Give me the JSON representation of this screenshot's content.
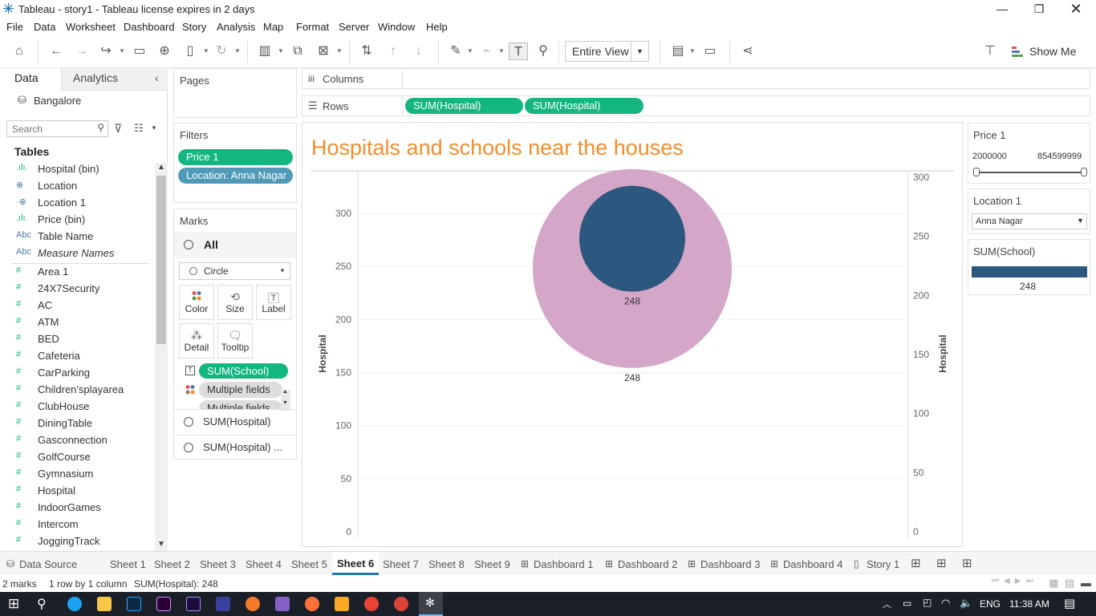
{
  "window": {
    "title": "Tableau - story1 - Tableau license expires in 2 days"
  },
  "menu": [
    "File",
    "Data",
    "Worksheet",
    "Dashboard",
    "Story",
    "Analysis",
    "Map",
    "Format",
    "Server",
    "Window",
    "Help"
  ],
  "toolbar": {
    "view_select": "Entire View",
    "show_me": "Show Me"
  },
  "data_pane": {
    "tab_data": "Data",
    "tab_analytics": "Analytics",
    "datasource": "Bangalore",
    "search_placeholder": "Search",
    "tables_heading": "Tables",
    "fields": [
      {
        "icon": ".ılı.",
        "name": "Hospital (bin)",
        "italic": false
      },
      {
        "icon": "globe",
        "name": "Location",
        "italic": false
      },
      {
        "icon": "globe2",
        "name": "Location 1",
        "italic": false
      },
      {
        "icon": ".ılı.",
        "name": "Price (bin)",
        "italic": false
      },
      {
        "icon": "Abc",
        "name": "Table Name",
        "italic": false
      },
      {
        "icon": "Abc",
        "name": "Measure Names",
        "italic": true
      },
      {
        "icon": "#",
        "name": "Area 1",
        "italic": false
      },
      {
        "icon": "#",
        "name": "24X7Security",
        "italic": false
      },
      {
        "icon": "#",
        "name": "AC",
        "italic": false
      },
      {
        "icon": "#",
        "name": "ATM",
        "italic": false
      },
      {
        "icon": "#",
        "name": "BED",
        "italic": false
      },
      {
        "icon": "#",
        "name": "Cafeteria",
        "italic": false
      },
      {
        "icon": "#",
        "name": "CarParking",
        "italic": false
      },
      {
        "icon": "#",
        "name": "Children'splayarea",
        "italic": false
      },
      {
        "icon": "#",
        "name": "ClubHouse",
        "italic": false
      },
      {
        "icon": "#",
        "name": "DiningTable",
        "italic": false
      },
      {
        "icon": "#",
        "name": "Gasconnection",
        "italic": false
      },
      {
        "icon": "#",
        "name": "GolfCourse",
        "italic": false
      },
      {
        "icon": "#",
        "name": "Gymnasium",
        "italic": false
      },
      {
        "icon": "#",
        "name": "Hospital",
        "italic": false
      },
      {
        "icon": "#",
        "name": "IndoorGames",
        "italic": false
      },
      {
        "icon": "#",
        "name": "Intercom",
        "italic": false
      },
      {
        "icon": "#",
        "name": "JoggingTrack",
        "italic": false
      }
    ]
  },
  "pages": {
    "title": "Pages"
  },
  "filters": {
    "title": "Filters",
    "pills": [
      "Price 1",
      "Location: Anna Nagar"
    ]
  },
  "marks": {
    "title": "Marks",
    "all": "All",
    "type": "Circle",
    "buttons": [
      "Color",
      "Size",
      "Label",
      "Detail",
      "Tooltip"
    ],
    "pills": [
      "SUM(School)",
      "Multiple fields",
      "Multiple fields"
    ],
    "layers": [
      "SUM(Hospital)",
      "SUM(Hospital) ..."
    ]
  },
  "shelves": {
    "columns_label": "Columns",
    "rows_label": "Rows",
    "rows_pills": [
      "SUM(Hospital)",
      "SUM(Hospital)"
    ]
  },
  "viz": {
    "title": "Hospitals and schools near the houses",
    "title_color": "#f28e2b"
  },
  "chart_data": {
    "type": "scatter",
    "title": "Hospitals and schools near the houses",
    "ylabel_left": "Hospital",
    "ylabel_right": "Hospital",
    "left_axis": {
      "ticks": [
        0,
        50,
        100,
        150,
        200,
        250,
        300
      ],
      "range": [
        0,
        340
      ]
    },
    "right_axis": {
      "ticks": [
        0,
        50,
        100,
        150,
        200,
        250,
        300
      ],
      "range": [
        0,
        300
      ]
    },
    "series": [
      {
        "axis": "left",
        "value": 248,
        "label": "248",
        "color": "#d4a6c8",
        "mark": "circle",
        "size": "large"
      },
      {
        "axis": "right",
        "value": 248,
        "label": "248",
        "color": "#2c577f",
        "mark": "circle",
        "size": "medium"
      }
    ]
  },
  "right_panel": {
    "price_title": "Price 1",
    "price_min": "2000000",
    "price_max": "854599999",
    "price_slider_min_fraction": 0,
    "price_slider_max_fraction": 1,
    "location_title": "Location 1",
    "location_value": "Anna Nagar",
    "school_title": "SUM(School)",
    "school_value": "248",
    "school_color": "#2c577f"
  },
  "sheet_tabs": [
    "Data Source",
    "Sheet 1",
    "Sheet 2",
    "Sheet 3",
    "Sheet 4",
    "Sheet 5",
    "Sheet 6",
    "Sheet 7",
    "Sheet 8",
    "Sheet 9",
    "Dashboard 1",
    "Dashboard 2",
    "Dashboard 3",
    "Dashboard 4",
    "Story 1"
  ],
  "active_tab": "Sheet 6",
  "status": {
    "marks": "2 marks",
    "rows_cols": "1 row by 1 column",
    "sum": "SUM(Hospital): 248"
  },
  "taskbar": {
    "lang": "ENG",
    "time": "11:38 AM"
  }
}
